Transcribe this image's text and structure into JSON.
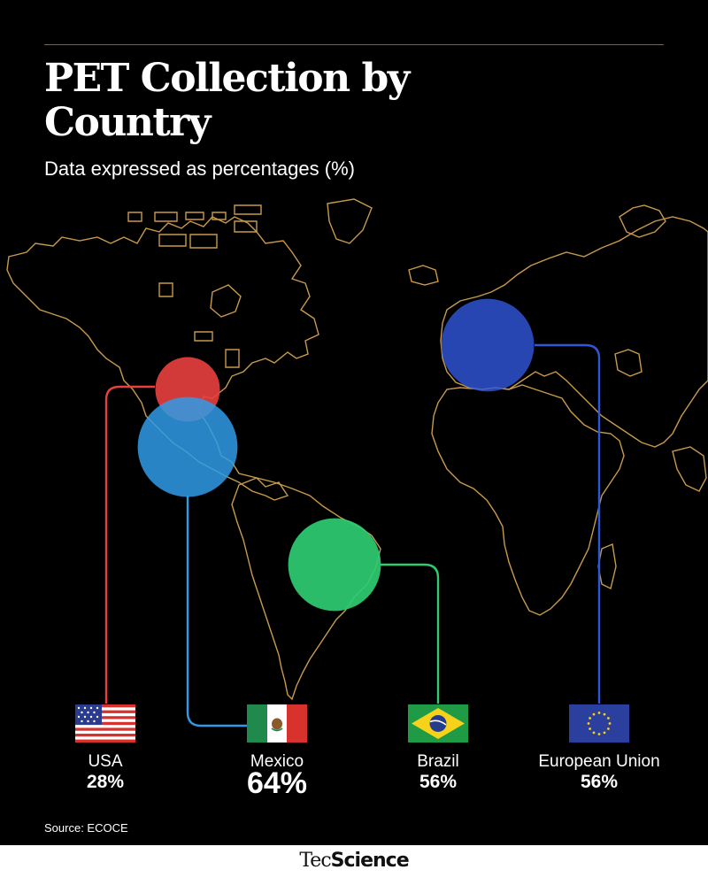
{
  "header": {
    "title": "PET Collection by Country",
    "subtitle": "Data expressed as percentages (%)"
  },
  "colors": {
    "background": "#000000",
    "map_outline": "#c89a4a",
    "usa": "#e8403f",
    "mexico": "#2f9be6",
    "brazil": "#2ecc71",
    "european_union": "#2f56d8"
  },
  "chart_data": {
    "type": "bubble-map",
    "title": "PET Collection by Country",
    "subtitle": "Data expressed as percentages (%)",
    "unit": "%",
    "categories": [
      "USA",
      "Mexico",
      "Brazil",
      "European Union"
    ],
    "values": [
      28,
      64,
      56,
      56
    ],
    "value_labels": [
      "28%",
      "64%",
      "56%",
      "56%"
    ],
    "flags": [
      "usa-flag-icon",
      "mexico-flag-icon",
      "brazil-flag-icon",
      "eu-flag-icon"
    ]
  },
  "footer": {
    "source": "Source: ECOCE",
    "brand_light": "Tec",
    "brand_bold": "Science"
  }
}
